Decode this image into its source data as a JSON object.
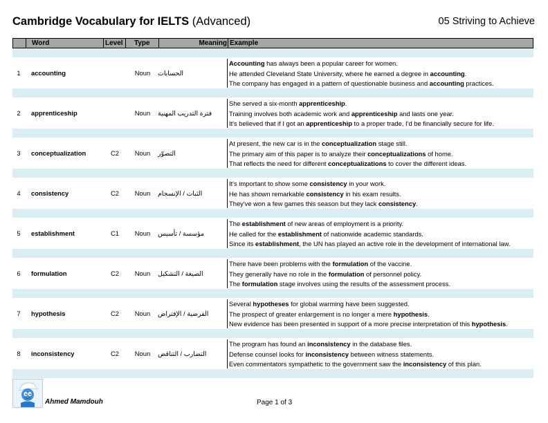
{
  "doc": {
    "title_bold": "Cambridge Vocabulary for IELTS",
    "title_rest": "(Advanced)",
    "unit": "05 Striving to Achieve"
  },
  "headers": {
    "word": "Word",
    "level": "Level",
    "type": "Type",
    "meaning": "Meaning",
    "example": "Example"
  },
  "rows": [
    {
      "num": "1",
      "word": "accounting",
      "level": "",
      "type": "Noun",
      "meaning": "الحسابات",
      "examples": [
        [
          [
            "b",
            "Accounting"
          ],
          [
            "t",
            " has always been a popular career for women."
          ]
        ],
        [
          [
            "t",
            "He attended Cleveland State University, where he earned a degree in "
          ],
          [
            "b",
            "accounting"
          ],
          [
            "t",
            "."
          ]
        ],
        [
          [
            "t",
            "The company has engaged in a pattern of questionable business and "
          ],
          [
            "b",
            "accounting"
          ],
          [
            "t",
            " practices."
          ]
        ]
      ]
    },
    {
      "num": "2",
      "word": "apprenticeship",
      "level": "",
      "type": "Noun",
      "meaning": "فترة التدريب المهنية",
      "examples": [
        [
          [
            "t",
            "She served a six-month "
          ],
          [
            "b",
            "apprenticeship"
          ],
          [
            "t",
            "."
          ]
        ],
        [
          [
            "t",
            "Training involves both academic work and "
          ],
          [
            "b",
            "apprenticeship"
          ],
          [
            "t",
            " and lasts one year."
          ]
        ],
        [
          [
            "t",
            "It's believed that if I got an "
          ],
          [
            "b",
            "apprenticeship"
          ],
          [
            "t",
            " to a proper trade, I'd be financially secure for life."
          ]
        ]
      ]
    },
    {
      "num": "3",
      "word": "conceptualization",
      "level": "C2",
      "type": "Noun",
      "meaning": "التصوّر",
      "examples": [
        [
          [
            "t",
            "At present, the new car is in the "
          ],
          [
            "b",
            "conceptualization"
          ],
          [
            "t",
            " stage still."
          ]
        ],
        [
          [
            "t",
            "The primary aim of this paper is to analyze their "
          ],
          [
            "b",
            "conceptualizations"
          ],
          [
            "t",
            " of home."
          ]
        ],
        [
          [
            "t",
            "That reflects the need for different "
          ],
          [
            "b",
            "conceptualizations"
          ],
          [
            "t",
            " to cover the different ideas."
          ]
        ]
      ]
    },
    {
      "num": "4",
      "word": "consistency",
      "level": "C2",
      "type": "Noun",
      "meaning": "الثبات / الإنسجام",
      "examples": [
        [
          [
            "t",
            "It's important to show some "
          ],
          [
            "b",
            "consistency"
          ],
          [
            "t",
            " in your work."
          ]
        ],
        [
          [
            "t",
            "He has shown remarkable "
          ],
          [
            "b",
            "consistency"
          ],
          [
            "t",
            " in his exam results."
          ]
        ],
        [
          [
            "t",
            "They've won a few games this season but they lack "
          ],
          [
            "b",
            "consistency"
          ],
          [
            "t",
            "."
          ]
        ]
      ]
    },
    {
      "num": "5",
      "word": "establishment",
      "level": "C1",
      "type": "Noun",
      "meaning": "مؤسسة / تأسيس",
      "examples": [
        [
          [
            "t",
            "The "
          ],
          [
            "b",
            "establishment"
          ],
          [
            "t",
            " of new areas of employment is a priority."
          ]
        ],
        [
          [
            "t",
            "He called for the "
          ],
          [
            "b",
            "establishment"
          ],
          [
            "t",
            " of nationwide academic standards."
          ]
        ],
        [
          [
            "t",
            "Since its "
          ],
          [
            "b",
            "establishment"
          ],
          [
            "t",
            ", the UN has played an active role in the development of international law."
          ]
        ]
      ]
    },
    {
      "num": "6",
      "word": "formulation",
      "level": "C2",
      "type": "Noun",
      "meaning": "الصيغة / التشكيل",
      "examples": [
        [
          [
            "t",
            "There have been problems with the "
          ],
          [
            "b",
            "formulation"
          ],
          [
            "t",
            " of the vaccine."
          ]
        ],
        [
          [
            "t",
            "They generally have no role in the "
          ],
          [
            "b",
            "formulation"
          ],
          [
            "t",
            " of personnel policy."
          ]
        ],
        [
          [
            "t",
            "The "
          ],
          [
            "b",
            "formulation"
          ],
          [
            "t",
            " stage involves using the results of the assessment process."
          ]
        ]
      ]
    },
    {
      "num": "7",
      "word": "hypothesis",
      "level": "C2",
      "type": "Noun",
      "meaning": "الفرضية / الإفتراض",
      "examples": [
        [
          [
            "t",
            "Several "
          ],
          [
            "b",
            "hypotheses"
          ],
          [
            "t",
            " for global warming have been suggested."
          ]
        ],
        [
          [
            "t",
            "The prospect of greater enlargement is no longer a mere "
          ],
          [
            "b",
            "hypothesis"
          ],
          [
            "t",
            "."
          ]
        ],
        [
          [
            "t",
            "New evidence has been presented in support of a more precise interpretation of this "
          ],
          [
            "b",
            "hypothesis"
          ],
          [
            "t",
            "."
          ]
        ]
      ]
    },
    {
      "num": "8",
      "word": "inconsistency",
      "level": "C2",
      "type": "Noun",
      "meaning": "التضارب / التناقض",
      "examples": [
        [
          [
            "t",
            "The program has found an "
          ],
          [
            "b",
            "inconsistency"
          ],
          [
            "t",
            " in the database files."
          ]
        ],
        [
          [
            "t",
            "Defense counsel looks for "
          ],
          [
            "b",
            "inconsistency"
          ],
          [
            "t",
            " between witness statements."
          ]
        ],
        [
          [
            "t",
            "Even commentators sympathetic to the government saw the "
          ],
          [
            "b",
            "inconsistency"
          ],
          [
            "t",
            " of this plan."
          ]
        ]
      ]
    }
  ],
  "footer": {
    "author": "Ahmed Mamdouh",
    "page": "Page 1 of 3",
    "logo_icon": "smurf-avatar-icon"
  }
}
